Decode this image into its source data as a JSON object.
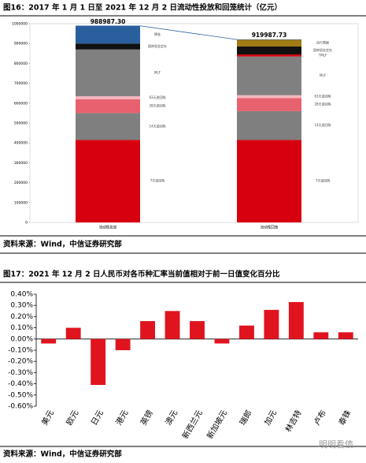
{
  "chart_data": [
    {
      "type": "stacked-bar",
      "title": "图16：2017 年 1 月 1 日至 2021 年 12 月 2 日流动性投放和回笼统计（亿元）",
      "source": "资料来源：Wind，中信证券研究部",
      "categories": [
        "流动性投放",
        "流动性回笼"
      ],
      "series": [
        {
          "name": "7天逆回购",
          "color": "#d7000f",
          "values": [
            415000,
            415000
          ]
        },
        {
          "name": "14天逆回购",
          "color": "#7f7f7f",
          "values": [
            135000,
            145000
          ]
        },
        {
          "name": "28天逆回购",
          "color": "#e8616f",
          "values": [
            70000,
            65000
          ]
        },
        {
          "name": "63天逆回购",
          "color": "#f4b6bd",
          "values": [
            15000,
            15000
          ]
        },
        {
          "name": "MLF",
          "color": "#808080",
          "values": [
            235000,
            195000
          ]
        },
        {
          "name": "TMLF",
          "color": "#d7000f",
          "values": [
            null,
            10000
          ]
        },
        {
          "name": "国库现金定存",
          "color": "#111111",
          "values": [
            30000,
            40000
          ]
        },
        {
          "name": "降准",
          "color": "#2a5f9e",
          "values": [
            88987.3,
            null
          ]
        },
        {
          "name": "央行票据",
          "color": "#a07a14",
          "values": [
            null,
            34987.73
          ]
        }
      ],
      "totals": [
        988987.3,
        919987.73
      ],
      "value_labels": [
        "988987.30",
        "919987.73"
      ],
      "ylim": [
        0,
        1000000
      ],
      "yticks": [
        0,
        100000,
        200000,
        300000,
        400000,
        500000,
        600000,
        700000,
        800000,
        900000,
        1000000
      ]
    },
    {
      "type": "bar",
      "title": "图17：2021 年 12 月 2 日人民币对各币种汇率当前值相对于前一日值变化百分比",
      "source": "资料来源：Wind，中信证券研究部",
      "categories": [
        "美元",
        "欧元",
        "日元",
        "港元",
        "英镑",
        "澳元",
        "新西兰元",
        "新加坡元",
        "瑞郎",
        "加元",
        "林吉特",
        "卢布",
        "泰铢"
      ],
      "values": [
        -0.04,
        0.1,
        -0.41,
        -0.1,
        0.16,
        0.25,
        0.16,
        -0.04,
        0.12,
        0.26,
        0.33,
        0.06,
        0.06
      ],
      "color": "#e0141e",
      "ylim": [
        -0.6,
        0.4
      ],
      "yticks": [
        {
          "value": -0.6,
          "label": "-0.60%"
        },
        {
          "value": -0.5,
          "label": "-0.50%"
        },
        {
          "value": -0.4,
          "label": "-0.40%"
        },
        {
          "value": -0.3,
          "label": "-0.30%"
        },
        {
          "value": -0.2,
          "label": "-0.20%"
        },
        {
          "value": -0.1,
          "label": "-0.10%"
        },
        {
          "value": 0,
          "label": "0.00%"
        },
        {
          "value": 0.1,
          "label": "0.10%"
        },
        {
          "value": 0.2,
          "label": "0.20%"
        },
        {
          "value": 0.3,
          "label": "0.30%"
        },
        {
          "value": 0.4,
          "label": "0.40%"
        }
      ]
    }
  ],
  "watermark": "明明看债"
}
